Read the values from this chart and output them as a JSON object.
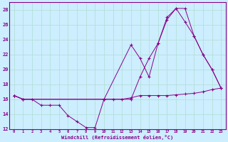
{
  "xlabel": "Windchill (Refroidissement éolien,°C)",
  "bg_color": "#cceeff",
  "grid_color": "#b0ddd0",
  "line_color": "#880088",
  "xlim": [
    -0.5,
    23.5
  ],
  "ylim": [
    12,
    29
  ],
  "yticks": [
    12,
    14,
    16,
    18,
    20,
    22,
    24,
    26,
    28
  ],
  "xticks": [
    0,
    1,
    2,
    3,
    4,
    5,
    6,
    7,
    8,
    9,
    10,
    11,
    12,
    13,
    14,
    15,
    16,
    17,
    18,
    19,
    20,
    21,
    22,
    23
  ],
  "series1_x": [
    0,
    1,
    2,
    3,
    4,
    5,
    6,
    7,
    8,
    9,
    10,
    11,
    12,
    13,
    14,
    15,
    16,
    17,
    18,
    19,
    20,
    21,
    22,
    23
  ],
  "series1_y": [
    16.5,
    16.0,
    16.0,
    15.2,
    15.2,
    15.2,
    13.8,
    13.0,
    12.2,
    12.2,
    16.0,
    16.0,
    16.0,
    16.2,
    16.5,
    16.5,
    16.5,
    16.5,
    16.6,
    16.7,
    16.8,
    17.0,
    17.3,
    17.5
  ],
  "series2_x": [
    0,
    1,
    10,
    13,
    14,
    15,
    16,
    17,
    18,
    19,
    20,
    21,
    22,
    23
  ],
  "series2_y": [
    16.5,
    16.0,
    16.0,
    16.0,
    19.0,
    21.5,
    23.5,
    26.7,
    28.2,
    26.4,
    24.5,
    22.0,
    20.0,
    17.5
  ],
  "series3_x": [
    0,
    1,
    10,
    13,
    14,
    15,
    16,
    17,
    18,
    19,
    20,
    21,
    22,
    23
  ],
  "series3_y": [
    16.5,
    16.0,
    16.0,
    23.3,
    21.5,
    19.0,
    23.5,
    27.0,
    28.2,
    28.2,
    24.5,
    22.0,
    20.0,
    17.5
  ]
}
